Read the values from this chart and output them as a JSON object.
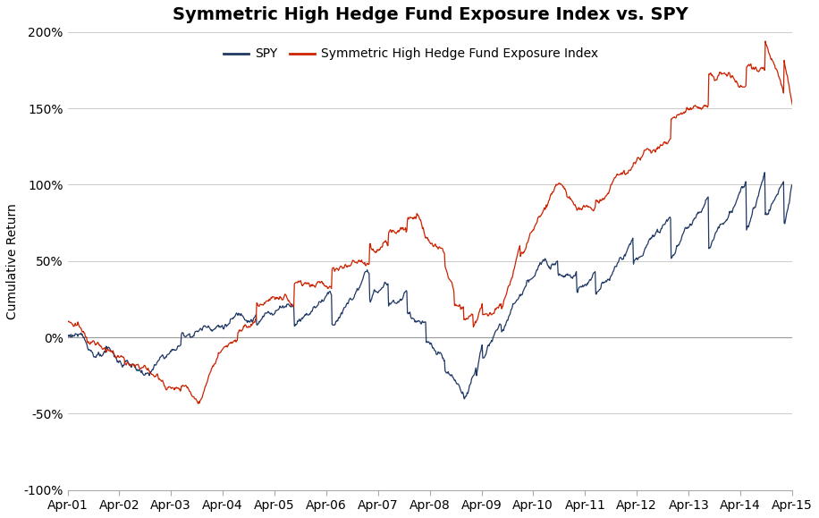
{
  "title": "Symmetric High Hedge Fund Exposure Index vs. SPY",
  "ylabel": "Cumulative Return",
  "spy_color": "#1f3864",
  "hf_color": "#cc2200",
  "background_color": "#ffffff",
  "ylim": [
    -1.0,
    2.0
  ],
  "yticks": [
    -1.0,
    -0.5,
    0.0,
    0.5,
    1.0,
    1.5,
    2.0
  ],
  "ytick_labels": [
    "-100%",
    "-50%",
    "0%",
    "50%",
    "100%",
    "150%",
    "200%"
  ],
  "xtick_labels": [
    "Apr-01",
    "Apr-02",
    "Apr-03",
    "Apr-04",
    "Apr-05",
    "Apr-06",
    "Apr-07",
    "Apr-08",
    "Apr-09",
    "Apr-10",
    "Apr-11",
    "Apr-12",
    "Apr-13",
    "Apr-14",
    "Apr-15"
  ],
  "title_fontsize": 14,
  "label_fontsize": 10,
  "tick_fontsize": 10,
  "legend_fontsize": 10,
  "spy_waypoints": [
    [
      0,
      0.0
    ],
    [
      15,
      0.02
    ],
    [
      30,
      -0.04
    ],
    [
      60,
      -0.1
    ],
    [
      90,
      -0.18
    ],
    [
      130,
      -0.25
    ],
    [
      180,
      -0.05
    ],
    [
      240,
      0.08
    ],
    [
      300,
      0.15
    ],
    [
      360,
      0.2
    ],
    [
      420,
      0.28
    ],
    [
      480,
      0.42
    ],
    [
      510,
      0.35
    ],
    [
      540,
      0.3
    ],
    [
      570,
      0.1
    ],
    [
      600,
      -0.15
    ],
    [
      630,
      -0.37
    ],
    [
      650,
      -0.2
    ],
    [
      660,
      -0.05
    ],
    [
      690,
      0.08
    ],
    [
      720,
      0.28
    ],
    [
      780,
      0.5
    ],
    [
      810,
      0.43
    ],
    [
      840,
      0.43
    ],
    [
      900,
      0.65
    ],
    [
      960,
      0.78
    ],
    [
      1020,
      0.92
    ],
    [
      1080,
      1.02
    ],
    [
      1110,
      1.08
    ],
    [
      1140,
      1.02
    ],
    [
      1155,
      1.0
    ]
  ],
  "hf_waypoints": [
    [
      0,
      0.1
    ],
    [
      15,
      0.08
    ],
    [
      30,
      0.0
    ],
    [
      60,
      -0.08
    ],
    [
      90,
      -0.14
    ],
    [
      130,
      -0.22
    ],
    [
      180,
      -0.35
    ],
    [
      210,
      -0.43
    ],
    [
      240,
      -0.1
    ],
    [
      270,
      -0.02
    ],
    [
      300,
      0.12
    ],
    [
      360,
      0.2
    ],
    [
      420,
      0.32
    ],
    [
      480,
      0.48
    ],
    [
      510,
      0.6
    ],
    [
      540,
      0.7
    ],
    [
      555,
      0.78
    ],
    [
      570,
      0.65
    ],
    [
      600,
      0.55
    ],
    [
      615,
      0.3
    ],
    [
      630,
      0.2
    ],
    [
      645,
      0.15
    ],
    [
      660,
      0.22
    ],
    [
      690,
      0.22
    ],
    [
      720,
      0.6
    ],
    [
      780,
      1.0
    ],
    [
      810,
      0.85
    ],
    [
      840,
      0.85
    ],
    [
      900,
      1.12
    ],
    [
      960,
      1.3
    ],
    [
      1020,
      1.52
    ],
    [
      1080,
      1.65
    ],
    [
      1110,
      1.75
    ],
    [
      1140,
      1.6
    ],
    [
      1155,
      1.52
    ]
  ]
}
